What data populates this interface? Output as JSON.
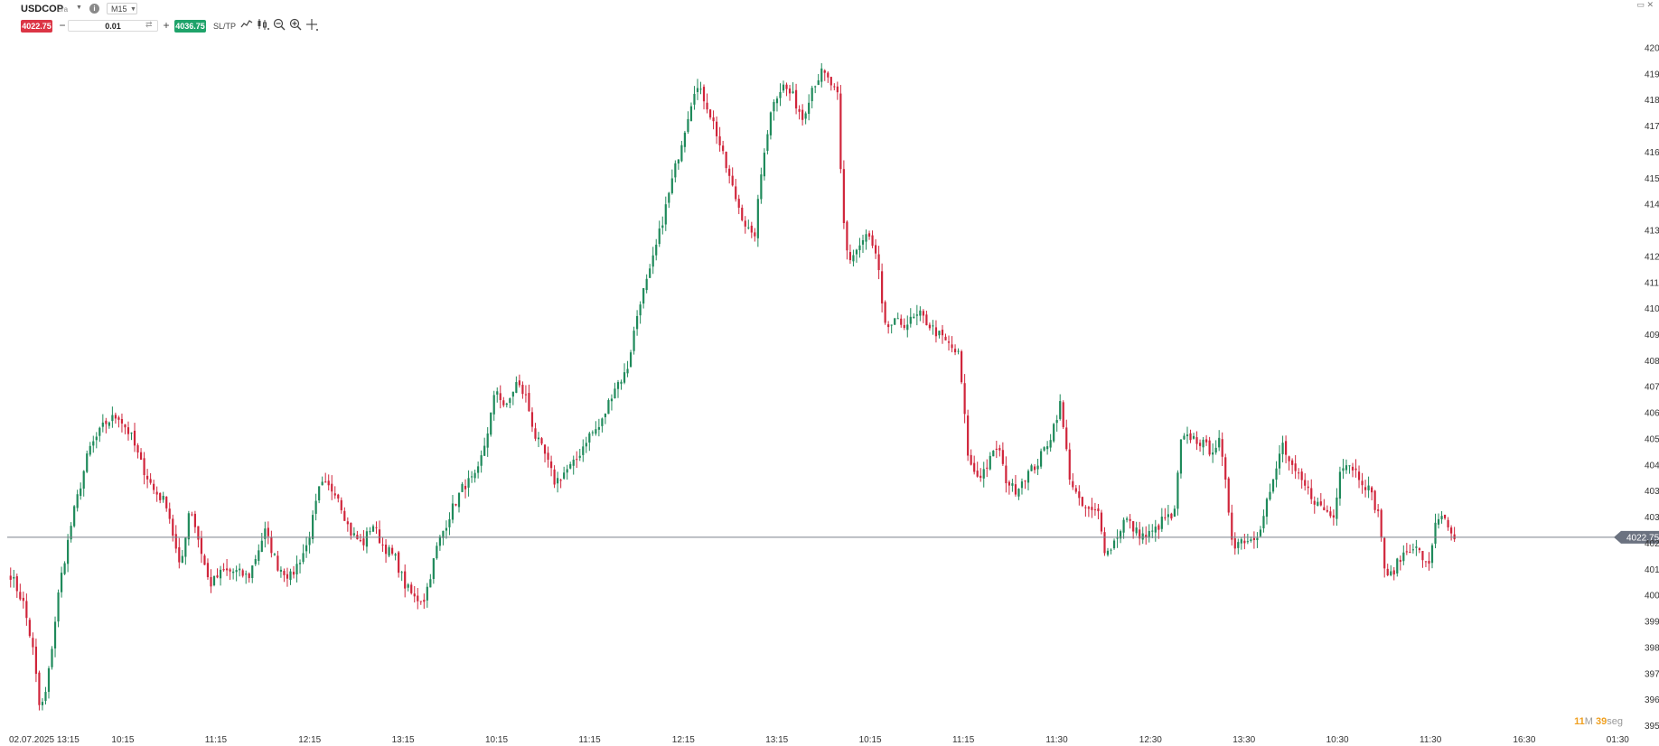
{
  "toolbar": {
    "symbol": "USDCOP",
    "symbol_suffix": "cra",
    "timeframe": "M15",
    "sell_price": "4022.75",
    "quantity": "0.01",
    "buy_price": "4036.75",
    "sltp_label": "SL/TP",
    "tools": [
      "line-chart-icon",
      "candles-icon",
      "zoom-out-icon",
      "zoom-in-icon",
      "crosshair-icon"
    ]
  },
  "countdown": {
    "minutes": "11",
    "minutes_unit": "M",
    "seconds": "39",
    "seconds_unit": "seg"
  },
  "colors": {
    "up": "#1f8a5b",
    "down": "#d0253b",
    "price_line": "#7a7f8a",
    "price_tag": "#6b7280",
    "grid": "#ffffff"
  },
  "chart_data": {
    "type": "candlestick",
    "title": "",
    "xlabel": "",
    "ylabel": "",
    "ylim": [
      3952.78,
      4208.72
    ],
    "y_ticks": [
      "4203.89",
      "4194.23",
      "4184.57",
      "4174.91",
      "4165.25",
      "4155.60",
      "4145.94",
      "4136.28",
      "4126.62",
      "4116.96",
      "4107.31",
      "4097.65",
      "4087.99",
      "4078.33",
      "4068.67",
      "4059.01",
      "4049.36",
      "4039.70",
      "4030.04",
      "4020.38",
      "4010.72",
      "4001.07",
      "3991.41",
      "3981.75",
      "3972.09",
      "3962.43",
      "3952.78"
    ],
    "x_ticks": [
      "02.07.2025 13:15",
      "10:15",
      "11:15",
      "12:15",
      "13:15",
      "10:15",
      "11:15",
      "12:15",
      "13:15",
      "10:15",
      "11:15",
      "11:30",
      "12:30",
      "13:30",
      "10:30",
      "11:30",
      "16:30",
      "01:30"
    ],
    "current_price": 4022.75,
    "current_price_label": "4022.75",
    "bars_visible": 455,
    "bar_slots_total": 512,
    "close_path": [
      [
        0,
        4009
      ],
      [
        8,
        3998
      ],
      [
        14,
        3980
      ],
      [
        18,
        3958
      ],
      [
        22,
        3966
      ],
      [
        30,
        4005
      ],
      [
        38,
        4030
      ],
      [
        48,
        4055
      ],
      [
        58,
        4065
      ],
      [
        66,
        4068
      ],
      [
        74,
        4060
      ],
      [
        80,
        4050
      ],
      [
        88,
        4040
      ],
      [
        96,
        4035
      ],
      [
        104,
        4010
      ],
      [
        110,
        4035
      ],
      [
        116,
        4020
      ],
      [
        122,
        4005
      ],
      [
        130,
        4010
      ],
      [
        138,
        4010
      ],
      [
        146,
        4008
      ],
      [
        156,
        4025
      ],
      [
        164,
        4012
      ],
      [
        172,
        4008
      ],
      [
        182,
        4020
      ],
      [
        190,
        4042
      ],
      [
        200,
        4040
      ],
      [
        208,
        4025
      ],
      [
        216,
        4020
      ],
      [
        222,
        4028
      ],
      [
        228,
        4020
      ],
      [
        236,
        4015
      ],
      [
        242,
        4005
      ],
      [
        248,
        4000
      ],
      [
        254,
        4000
      ],
      [
        262,
        4020
      ],
      [
        270,
        4032
      ],
      [
        278,
        4042
      ],
      [
        286,
        4045
      ],
      [
        292,
        4060
      ],
      [
        298,
        4078
      ],
      [
        304,
        4070
      ],
      [
        310,
        4080
      ],
      [
        316,
        4075
      ],
      [
        322,
        4060
      ],
      [
        328,
        4053
      ],
      [
        334,
        4043
      ],
      [
        340,
        4047
      ],
      [
        346,
        4050
      ],
      [
        354,
        4060
      ],
      [
        362,
        4064
      ],
      [
        370,
        4078
      ],
      [
        378,
        4084
      ],
      [
        386,
        4110
      ],
      [
        392,
        4120
      ],
      [
        398,
        4135
      ],
      [
        404,
        4150
      ],
      [
        410,
        4165
      ],
      [
        416,
        4180
      ],
      [
        420,
        4190
      ],
      [
        426,
        4185
      ],
      [
        432,
        4175
      ],
      [
        438,
        4162
      ],
      [
        444,
        4150
      ],
      [
        450,
        4140
      ],
      [
        456,
        4132
      ],
      [
        462,
        4165
      ],
      [
        468,
        4185
      ],
      [
        474,
        4190
      ],
      [
        480,
        4186
      ],
      [
        486,
        4178
      ],
      [
        492,
        4190
      ],
      [
        498,
        4195
      ],
      [
        504,
        4190
      ],
      [
        508,
        4185
      ],
      [
        510,
        4145
      ],
      [
        514,
        4125
      ],
      [
        520,
        4130
      ],
      [
        526,
        4135
      ],
      [
        532,
        4125
      ],
      [
        536,
        4100
      ],
      [
        542,
        4102
      ],
      [
        550,
        4102
      ],
      [
        558,
        4105
      ],
      [
        566,
        4100
      ],
      [
        574,
        4095
      ],
      [
        582,
        4090
      ],
      [
        588,
        4050
      ],
      [
        594,
        4045
      ],
      [
        600,
        4050
      ],
      [
        606,
        4057
      ],
      [
        610,
        4045
      ],
      [
        616,
        4040
      ],
      [
        622,
        4045
      ],
      [
        630,
        4050
      ],
      [
        638,
        4060
      ],
      [
        644,
        4072
      ],
      [
        650,
        4045
      ],
      [
        656,
        4035
      ],
      [
        662,
        4032
      ],
      [
        668,
        4032
      ],
      [
        672,
        4016
      ],
      [
        678,
        4022
      ],
      [
        684,
        4030
      ],
      [
        690,
        4025
      ],
      [
        696,
        4023
      ],
      [
        702,
        4025
      ],
      [
        708,
        4030
      ],
      [
        714,
        4030
      ],
      [
        718,
        4058
      ],
      [
        724,
        4060
      ],
      [
        730,
        4058
      ],
      [
        736,
        4055
      ],
      [
        742,
        4058
      ],
      [
        746,
        4040
      ],
      [
        750,
        4020
      ],
      [
        756,
        4022
      ],
      [
        762,
        4022
      ],
      [
        766,
        4025
      ],
      [
        770,
        4035
      ],
      [
        776,
        4045
      ],
      [
        780,
        4058
      ],
      [
        786,
        4048
      ],
      [
        790,
        4045
      ],
      [
        796,
        4040
      ],
      [
        802,
        4035
      ],
      [
        808,
        4032
      ],
      [
        812,
        4030
      ],
      [
        816,
        4050
      ],
      [
        822,
        4050
      ],
      [
        828,
        4045
      ],
      [
        834,
        4040
      ],
      [
        840,
        4030
      ],
      [
        844,
        4006
      ],
      [
        848,
        4010
      ],
      [
        854,
        4016
      ],
      [
        860,
        4020
      ],
      [
        866,
        4016
      ],
      [
        870,
        4010
      ],
      [
        874,
        4028
      ],
      [
        878,
        4032
      ],
      [
        882,
        4025
      ],
      [
        886,
        4022
      ]
    ]
  }
}
